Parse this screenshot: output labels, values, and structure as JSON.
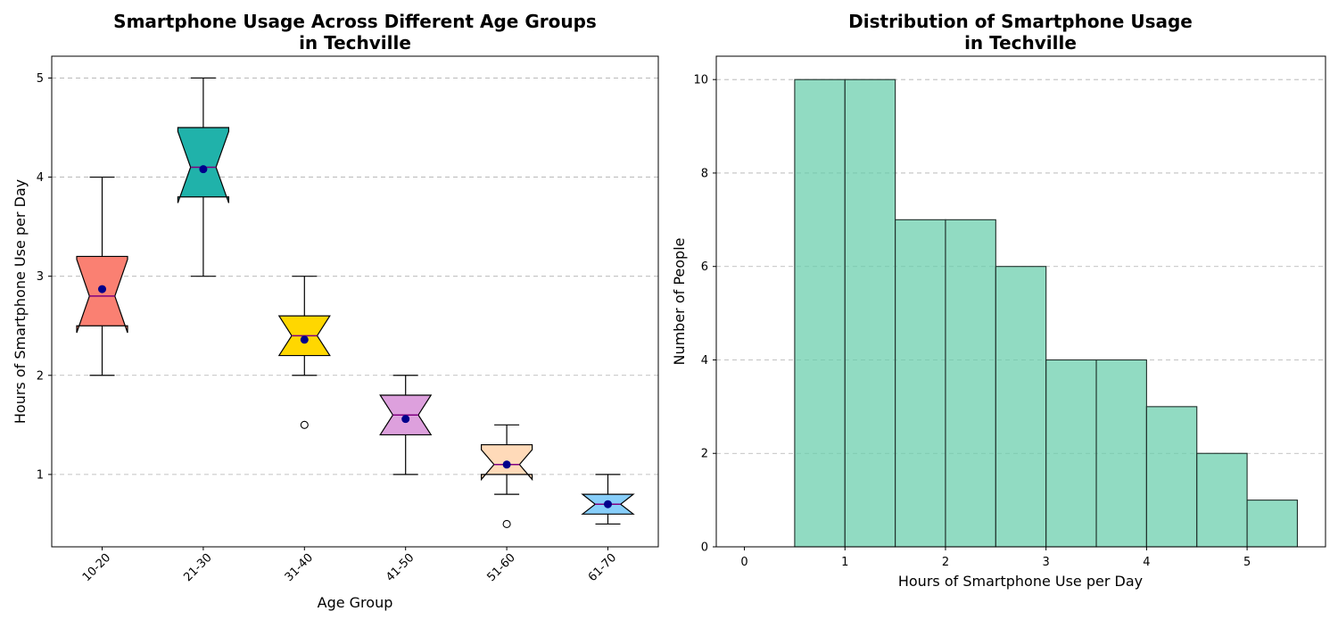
{
  "chart_data": [
    {
      "type": "box",
      "title": "Smartphone Usage Across Different Age Groups\nin Techville",
      "xlabel": "Age Group",
      "ylabel": "Hours of Smartphone Use per Day",
      "ylim": [
        0.27,
        5.22
      ],
      "yticks": [
        1,
        2,
        3,
        4,
        5
      ],
      "grid": "y-dashed",
      "notched": true,
      "categories": [
        "10-20",
        "21-30",
        "31-40",
        "41-50",
        "51-60",
        "61-70"
      ],
      "boxes": [
        {
          "q1": 2.5,
          "median": 2.8,
          "q3": 3.2,
          "whisker_low": 2.0,
          "whisker_high": 4.0,
          "notch_low": 2.43,
          "notch_high": 3.17,
          "mean": 2.87,
          "outliers": [],
          "color": "#fa8072"
        },
        {
          "q1": 3.8,
          "median": 4.1,
          "q3": 4.5,
          "whisker_low": 3.0,
          "whisker_high": 5.0,
          "notch_low": 3.74,
          "notch_high": 4.46,
          "mean": 4.08,
          "outliers": [],
          "color": "#20b2aa"
        },
        {
          "q1": 2.2,
          "median": 2.4,
          "q3": 2.6,
          "whisker_low": 2.0,
          "whisker_high": 3.0,
          "notch_low": 2.2,
          "notch_high": 2.6,
          "mean": 2.36,
          "outliers": [
            1.5
          ],
          "color": "#ffd700"
        },
        {
          "q1": 1.4,
          "median": 1.6,
          "q3": 1.8,
          "whisker_low": 1.0,
          "whisker_high": 2.0,
          "notch_low": 1.4,
          "notch_high": 1.8,
          "mean": 1.56,
          "outliers": [],
          "color": "#dda0dd"
        },
        {
          "q1": 1.0,
          "median": 1.1,
          "q3": 1.3,
          "whisker_low": 0.8,
          "whisker_high": 1.5,
          "notch_low": 0.95,
          "notch_high": 1.25,
          "mean": 1.1,
          "outliers": [
            0.5
          ],
          "color": "#ffdab9"
        },
        {
          "q1": 0.6,
          "median": 0.7,
          "q3": 0.8,
          "whisker_low": 0.5,
          "whisker_high": 1.0,
          "notch_low": 0.6,
          "notch_high": 0.8,
          "mean": 0.7,
          "outliers": [],
          "color": "#87cefa"
        }
      ],
      "mean_marker_color": "#00008b",
      "median_line_color": "#800080"
    },
    {
      "type": "bar",
      "title": "Distribution of Smartphone Usage\nin Techville",
      "xlabel": "Hours of Smartphone Use per Day",
      "ylabel": "Number of People",
      "xlim": [
        -0.28,
        5.78
      ],
      "ylim": [
        0,
        10.5
      ],
      "xticks": [
        0,
        1,
        2,
        3,
        4,
        5
      ],
      "yticks": [
        0,
        2,
        4,
        6,
        8,
        10
      ],
      "grid": "y-dashed",
      "bin_edges": [
        0,
        0.5,
        1,
        1.5,
        2,
        2.5,
        3,
        3.5,
        4,
        4.5,
        5,
        5.5
      ],
      "values": [
        0,
        10,
        10,
        7,
        7,
        6,
        4,
        4,
        3,
        2,
        1
      ],
      "color": "#66cdaa"
    }
  ]
}
